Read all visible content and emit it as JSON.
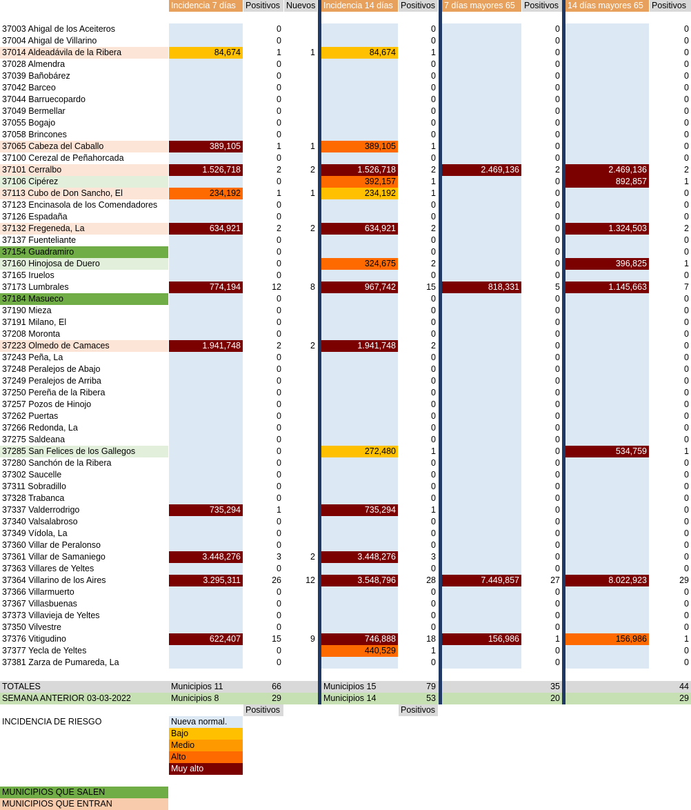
{
  "headers": {
    "inc7": "Incidencia 7 días",
    "pos7": "Positivos",
    "nuevos": "Nuevos",
    "inc14": "Incidencia 14 días",
    "pos14": "Positivos",
    "may7": "7 días mayores 65",
    "posm7": "Positivos",
    "may14": "14 días mayores 65",
    "posm14": "Positivos"
  },
  "rows": [
    {
      "name": "37003 Ahigal de los Aceiteros",
      "cls": "",
      "inc7": "",
      "c7": "light",
      "p7": "0",
      "n": "",
      "inc14": "",
      "c14": "light",
      "p14": "0",
      "m7": "",
      "cm7": "light",
      "pm7": "0",
      "m14": "",
      "cm14": "light",
      "pm14": "0"
    },
    {
      "name": "37004 Ahigal de Villarino",
      "cls": "",
      "inc7": "",
      "c7": "light",
      "p7": "0",
      "n": "",
      "inc14": "",
      "c14": "light",
      "p14": "0",
      "m7": "",
      "cm7": "light",
      "pm7": "0",
      "m14": "",
      "cm14": "light",
      "pm14": "0"
    },
    {
      "name": "37014 Aldeadávila de la Ribera",
      "cls": "entra-light",
      "inc7": "84,674",
      "c7": "bajo",
      "p7": "1",
      "n": "1",
      "inc14": "84,674",
      "c14": "bajo",
      "p14": "1",
      "m7": "",
      "cm7": "light",
      "pm7": "0",
      "m14": "",
      "cm14": "light",
      "pm14": "0"
    },
    {
      "name": "37028 Almendra",
      "cls": "",
      "inc7": "",
      "c7": "light",
      "p7": "0",
      "n": "",
      "inc14": "",
      "c14": "light",
      "p14": "0",
      "m7": "",
      "cm7": "light",
      "pm7": "0",
      "m14": "",
      "cm14": "light",
      "pm14": "0"
    },
    {
      "name": "37039 Bañobárez",
      "cls": "",
      "inc7": "",
      "c7": "light",
      "p7": "0",
      "n": "",
      "inc14": "",
      "c14": "light",
      "p14": "0",
      "m7": "",
      "cm7": "light",
      "pm7": "0",
      "m14": "",
      "cm14": "light",
      "pm14": "0"
    },
    {
      "name": "37042 Barceo",
      "cls": "",
      "inc7": "",
      "c7": "light",
      "p7": "0",
      "n": "",
      "inc14": "",
      "c14": "light",
      "p14": "0",
      "m7": "",
      "cm7": "light",
      "pm7": "0",
      "m14": "",
      "cm14": "light",
      "pm14": "0"
    },
    {
      "name": "37044 Barruecopardo",
      "cls": "",
      "inc7": "",
      "c7": "light",
      "p7": "0",
      "n": "",
      "inc14": "",
      "c14": "light",
      "p14": "0",
      "m7": "",
      "cm7": "light",
      "pm7": "0",
      "m14": "",
      "cm14": "light",
      "pm14": "0"
    },
    {
      "name": "37049 Bermellar",
      "cls": "",
      "inc7": "",
      "c7": "light",
      "p7": "0",
      "n": "",
      "inc14": "",
      "c14": "light",
      "p14": "0",
      "m7": "",
      "cm7": "light",
      "pm7": "0",
      "m14": "",
      "cm14": "light",
      "pm14": "0"
    },
    {
      "name": "37055 Bogajo",
      "cls": "",
      "inc7": "",
      "c7": "light",
      "p7": "0",
      "n": "",
      "inc14": "",
      "c14": "light",
      "p14": "0",
      "m7": "",
      "cm7": "light",
      "pm7": "0",
      "m14": "",
      "cm14": "light",
      "pm14": "0"
    },
    {
      "name": "37058 Brincones",
      "cls": "",
      "inc7": "",
      "c7": "light",
      "p7": "0",
      "n": "",
      "inc14": "",
      "c14": "light",
      "p14": "0",
      "m7": "",
      "cm7": "light",
      "pm7": "0",
      "m14": "",
      "cm14": "light",
      "pm14": "0"
    },
    {
      "name": "37065 Cabeza del Caballo",
      "cls": "entra-light",
      "inc7": "389,105",
      "c7": "muy",
      "p7": "1",
      "n": "1",
      "inc14": "389,105",
      "c14": "alto",
      "p14": "1",
      "m7": "",
      "cm7": "light",
      "pm7": "0",
      "m14": "",
      "cm14": "light",
      "pm14": "0"
    },
    {
      "name": "37100 Cerezal de Peñahorcada",
      "cls": "",
      "inc7": "",
      "c7": "light",
      "p7": "0",
      "n": "",
      "inc14": "",
      "c14": "light",
      "p14": "0",
      "m7": "",
      "cm7": "light",
      "pm7": "0",
      "m14": "",
      "cm14": "light",
      "pm14": "0"
    },
    {
      "name": "37101 Cerralbo",
      "cls": "entra-light",
      "inc7": "1.526,718",
      "c7": "muy",
      "p7": "2",
      "n": "2",
      "inc14": "1.526,718",
      "c14": "muy",
      "p14": "2",
      "m7": "2.469,136",
      "cm7": "muy",
      "pm7": "2",
      "m14": "2.469,136",
      "cm14": "muy",
      "pm14": "2"
    },
    {
      "name": "37106 Cipérez",
      "cls": "sale-light",
      "inc7": "",
      "c7": "light",
      "p7": "0",
      "n": "",
      "inc14": "392,157",
      "c14": "alto",
      "p14": "1",
      "m7": "",
      "cm7": "light",
      "pm7": "0",
      "m14": "892,857",
      "cm14": "muy",
      "pm14": "1"
    },
    {
      "name": "37113 Cubo de Don Sancho, El",
      "cls": "entra-light",
      "inc7": "234,192",
      "c7": "alto",
      "p7": "1",
      "n": "1",
      "inc14": "234,192",
      "c14": "bajo",
      "p14": "1",
      "m7": "",
      "cm7": "light",
      "pm7": "0",
      "m14": "",
      "cm14": "light",
      "pm14": "0"
    },
    {
      "name": "37123 Encinasola de los Comendadores",
      "cls": "",
      "inc7": "",
      "c7": "light",
      "p7": "0",
      "n": "",
      "inc14": "",
      "c14": "light",
      "p14": "0",
      "m7": "",
      "cm7": "light",
      "pm7": "0",
      "m14": "",
      "cm14": "light",
      "pm14": "0"
    },
    {
      "name": "37126 Espadaña",
      "cls": "",
      "inc7": "",
      "c7": "light",
      "p7": "0",
      "n": "",
      "inc14": "",
      "c14": "light",
      "p14": "0",
      "m7": "",
      "cm7": "light",
      "pm7": "0",
      "m14": "",
      "cm14": "light",
      "pm14": "0"
    },
    {
      "name": "37132 Fregeneda, La",
      "cls": "entra-light",
      "inc7": "634,921",
      "c7": "muy",
      "p7": "2",
      "n": "2",
      "inc14": "634,921",
      "c14": "muy",
      "p14": "2",
      "m7": "",
      "cm7": "light",
      "pm7": "0",
      "m14": "1.324,503",
      "cm14": "muy",
      "pm14": "2"
    },
    {
      "name": "37137 Fuenteliante",
      "cls": "",
      "inc7": "",
      "c7": "light",
      "p7": "0",
      "n": "",
      "inc14": "",
      "c14": "light",
      "p14": "0",
      "m7": "",
      "cm7": "light",
      "pm7": "0",
      "m14": "",
      "cm14": "light",
      "pm14": "0"
    },
    {
      "name": "37154 Guadramiro",
      "cls": "sale",
      "inc7": "",
      "c7": "light",
      "p7": "0",
      "n": "",
      "inc14": "",
      "c14": "light",
      "p14": "0",
      "m7": "",
      "cm7": "light",
      "pm7": "0",
      "m14": "",
      "cm14": "light",
      "pm14": "0"
    },
    {
      "name": "37160 Hinojosa de Duero",
      "cls": "sale-light",
      "inc7": "",
      "c7": "light",
      "p7": "0",
      "n": "",
      "inc14": "324,675",
      "c14": "alto",
      "p14": "2",
      "m7": "",
      "cm7": "light",
      "pm7": "0",
      "m14": "396,825",
      "cm14": "muy",
      "pm14": "1"
    },
    {
      "name": "37165 Iruelos",
      "cls": "",
      "inc7": "",
      "c7": "light",
      "p7": "0",
      "n": "",
      "inc14": "",
      "c14": "light",
      "p14": "0",
      "m7": "",
      "cm7": "light",
      "pm7": "0",
      "m14": "",
      "cm14": "light",
      "pm14": "0"
    },
    {
      "name": "37173 Lumbrales",
      "cls": "",
      "inc7": "774,194",
      "c7": "muy",
      "p7": "12",
      "n": "8",
      "inc14": "967,742",
      "c14": "muy",
      "p14": "15",
      "m7": "818,331",
      "cm7": "muy",
      "pm7": "5",
      "m14": "1.145,663",
      "cm14": "muy",
      "pm14": "7"
    },
    {
      "name": "37184 Masueco",
      "cls": "sale",
      "inc7": "",
      "c7": "light",
      "p7": "0",
      "n": "",
      "inc14": "",
      "c14": "light",
      "p14": "0",
      "m7": "",
      "cm7": "light",
      "pm7": "0",
      "m14": "",
      "cm14": "light",
      "pm14": "0"
    },
    {
      "name": "37190 Mieza",
      "cls": "",
      "inc7": "",
      "c7": "light",
      "p7": "0",
      "n": "",
      "inc14": "",
      "c14": "light",
      "p14": "0",
      "m7": "",
      "cm7": "light",
      "pm7": "0",
      "m14": "",
      "cm14": "light",
      "pm14": "0"
    },
    {
      "name": "37191 Milano, El",
      "cls": "",
      "inc7": "",
      "c7": "light",
      "p7": "0",
      "n": "",
      "inc14": "",
      "c14": "light",
      "p14": "0",
      "m7": "",
      "cm7": "light",
      "pm7": "0",
      "m14": "",
      "cm14": "light",
      "pm14": "0"
    },
    {
      "name": "37208 Moronta",
      "cls": "",
      "inc7": "",
      "c7": "light",
      "p7": "0",
      "n": "",
      "inc14": "",
      "c14": "light",
      "p14": "0",
      "m7": "",
      "cm7": "light",
      "pm7": "0",
      "m14": "",
      "cm14": "light",
      "pm14": "0"
    },
    {
      "name": "37223 Olmedo de Camaces",
      "cls": "entra-light",
      "inc7": "1.941,748",
      "c7": "muy",
      "p7": "2",
      "n": "2",
      "inc14": "1.941,748",
      "c14": "muy",
      "p14": "2",
      "m7": "",
      "cm7": "light",
      "pm7": "0",
      "m14": "",
      "cm14": "light",
      "pm14": "0"
    },
    {
      "name": "37243 Peña, La",
      "cls": "",
      "inc7": "",
      "c7": "light",
      "p7": "0",
      "n": "",
      "inc14": "",
      "c14": "light",
      "p14": "0",
      "m7": "",
      "cm7": "light",
      "pm7": "0",
      "m14": "",
      "cm14": "light",
      "pm14": "0"
    },
    {
      "name": "37248 Peralejos de Abajo",
      "cls": "",
      "inc7": "",
      "c7": "light",
      "p7": "0",
      "n": "",
      "inc14": "",
      "c14": "light",
      "p14": "0",
      "m7": "",
      "cm7": "light",
      "pm7": "0",
      "m14": "",
      "cm14": "light",
      "pm14": "0"
    },
    {
      "name": "37249 Peralejos de Arriba",
      "cls": "",
      "inc7": "",
      "c7": "light",
      "p7": "0",
      "n": "",
      "inc14": "",
      "c14": "light",
      "p14": "0",
      "m7": "",
      "cm7": "light",
      "pm7": "0",
      "m14": "",
      "cm14": "light",
      "pm14": "0"
    },
    {
      "name": "37250 Pereña de la Ribera",
      "cls": "",
      "inc7": "",
      "c7": "light",
      "p7": "0",
      "n": "",
      "inc14": "",
      "c14": "light",
      "p14": "0",
      "m7": "",
      "cm7": "light",
      "pm7": "0",
      "m14": "",
      "cm14": "light",
      "pm14": "0"
    },
    {
      "name": "37257 Pozos de Hinojo",
      "cls": "",
      "inc7": "",
      "c7": "light",
      "p7": "0",
      "n": "",
      "inc14": "",
      "c14": "light",
      "p14": "0",
      "m7": "",
      "cm7": "light",
      "pm7": "0",
      "m14": "",
      "cm14": "light",
      "pm14": "0"
    },
    {
      "name": "37262 Puertas",
      "cls": "",
      "inc7": "",
      "c7": "light",
      "p7": "0",
      "n": "",
      "inc14": "",
      "c14": "light",
      "p14": "0",
      "m7": "",
      "cm7": "light",
      "pm7": "0",
      "m14": "",
      "cm14": "light",
      "pm14": "0"
    },
    {
      "name": "37266 Redonda, La",
      "cls": "",
      "inc7": "",
      "c7": "light",
      "p7": "0",
      "n": "",
      "inc14": "",
      "c14": "light",
      "p14": "0",
      "m7": "",
      "cm7": "light",
      "pm7": "0",
      "m14": "",
      "cm14": "light",
      "pm14": "0"
    },
    {
      "name": "37275 Saldeana",
      "cls": "",
      "inc7": "",
      "c7": "light",
      "p7": "0",
      "n": "",
      "inc14": "",
      "c14": "light",
      "p14": "0",
      "m7": "",
      "cm7": "light",
      "pm7": "0",
      "m14": "",
      "cm14": "light",
      "pm14": "0"
    },
    {
      "name": "37285 San Felices de los Gallegos",
      "cls": "sale-light",
      "inc7": "",
      "c7": "light",
      "p7": "0",
      "n": "",
      "inc14": "272,480",
      "c14": "bajo",
      "p14": "1",
      "m7": "",
      "cm7": "light",
      "pm7": "0",
      "m14": "534,759",
      "cm14": "muy",
      "pm14": "1"
    },
    {
      "name": "37280 Sanchón de la Ribera",
      "cls": "",
      "inc7": "",
      "c7": "light",
      "p7": "0",
      "n": "",
      "inc14": "",
      "c14": "light",
      "p14": "0",
      "m7": "",
      "cm7": "light",
      "pm7": "0",
      "m14": "",
      "cm14": "light",
      "pm14": "0"
    },
    {
      "name": "37302 Saucelle",
      "cls": "",
      "inc7": "",
      "c7": "light",
      "p7": "0",
      "n": "",
      "inc14": "",
      "c14": "light",
      "p14": "0",
      "m7": "",
      "cm7": "light",
      "pm7": "0",
      "m14": "",
      "cm14": "light",
      "pm14": "0"
    },
    {
      "name": "37311 Sobradillo",
      "cls": "",
      "inc7": "",
      "c7": "light",
      "p7": "0",
      "n": "",
      "inc14": "",
      "c14": "light",
      "p14": "0",
      "m7": "",
      "cm7": "light",
      "pm7": "0",
      "m14": "",
      "cm14": "light",
      "pm14": "0"
    },
    {
      "name": "37328 Trabanca",
      "cls": "",
      "inc7": "",
      "c7": "light",
      "p7": "0",
      "n": "",
      "inc14": "",
      "c14": "light",
      "p14": "0",
      "m7": "",
      "cm7": "light",
      "pm7": "0",
      "m14": "",
      "cm14": "light",
      "pm14": "0"
    },
    {
      "name": "37337 Valderrodrigo",
      "cls": "",
      "inc7": "735,294",
      "c7": "muy",
      "p7": "1",
      "n": "",
      "inc14": "735,294",
      "c14": "muy",
      "p14": "1",
      "m7": "",
      "cm7": "light",
      "pm7": "0",
      "m14": "",
      "cm14": "light",
      "pm14": "0"
    },
    {
      "name": "37340 Valsalabroso",
      "cls": "",
      "inc7": "",
      "c7": "light",
      "p7": "0",
      "n": "",
      "inc14": "",
      "c14": "light",
      "p14": "0",
      "m7": "",
      "cm7": "light",
      "pm7": "0",
      "m14": "",
      "cm14": "light",
      "pm14": "0"
    },
    {
      "name": "37349 Vídola, La",
      "cls": "",
      "inc7": "",
      "c7": "light",
      "p7": "0",
      "n": "",
      "inc14": "",
      "c14": "light",
      "p14": "0",
      "m7": "",
      "cm7": "light",
      "pm7": "0",
      "m14": "",
      "cm14": "light",
      "pm14": "0"
    },
    {
      "name": "37360 Villar de Peralonso",
      "cls": "",
      "inc7": "",
      "c7": "light",
      "p7": "0",
      "n": "",
      "inc14": "",
      "c14": "light",
      "p14": "0",
      "m7": "",
      "cm7": "light",
      "pm7": "0",
      "m14": "",
      "cm14": "light",
      "pm14": "0"
    },
    {
      "name": "37361 Villar de Samaniego",
      "cls": "",
      "inc7": "3.448,276",
      "c7": "muy",
      "p7": "3",
      "n": "2",
      "inc14": "3.448,276",
      "c14": "muy",
      "p14": "3",
      "m7": "",
      "cm7": "light",
      "pm7": "0",
      "m14": "",
      "cm14": "light",
      "pm14": "0"
    },
    {
      "name": "37363 Villares de Yeltes",
      "cls": "",
      "inc7": "",
      "c7": "light",
      "p7": "0",
      "n": "",
      "inc14": "",
      "c14": "light",
      "p14": "0",
      "m7": "",
      "cm7": "light",
      "pm7": "0",
      "m14": "",
      "cm14": "light",
      "pm14": "0"
    },
    {
      "name": "37364 Villarino de los Aires",
      "cls": "",
      "inc7": "3.295,311",
      "c7": "muy",
      "p7": "26",
      "n": "12",
      "inc14": "3.548,796",
      "c14": "muy",
      "p14": "28",
      "m7": "7.449,857",
      "cm7": "muy",
      "pm7": "27",
      "m14": "8.022,923",
      "cm14": "muy",
      "pm14": "29"
    },
    {
      "name": "37366 Villarmuerto",
      "cls": "",
      "inc7": "",
      "c7": "light",
      "p7": "0",
      "n": "",
      "inc14": "",
      "c14": "light",
      "p14": "0",
      "m7": "",
      "cm7": "light",
      "pm7": "0",
      "m14": "",
      "cm14": "light",
      "pm14": "0"
    },
    {
      "name": "37367 Villasbuenas",
      "cls": "",
      "inc7": "",
      "c7": "light",
      "p7": "0",
      "n": "",
      "inc14": "",
      "c14": "light",
      "p14": "0",
      "m7": "",
      "cm7": "light",
      "pm7": "0",
      "m14": "",
      "cm14": "light",
      "pm14": "0"
    },
    {
      "name": "37373 Villavieja de Yeltes",
      "cls": "",
      "inc7": "",
      "c7": "light",
      "p7": "0",
      "n": "",
      "inc14": "",
      "c14": "light",
      "p14": "0",
      "m7": "",
      "cm7": "light",
      "pm7": "0",
      "m14": "",
      "cm14": "light",
      "pm14": "0"
    },
    {
      "name": "37350 Vilvestre",
      "cls": "",
      "inc7": "",
      "c7": "light",
      "p7": "0",
      "n": "",
      "inc14": "",
      "c14": "light",
      "p14": "0",
      "m7": "",
      "cm7": "light",
      "pm7": "0",
      "m14": "",
      "cm14": "light",
      "pm14": "0"
    },
    {
      "name": "37376 Vitigudino",
      "cls": "",
      "inc7": "622,407",
      "c7": "muy",
      "p7": "15",
      "n": "9",
      "inc14": "746,888",
      "c14": "muy",
      "p14": "18",
      "m7": "156,986",
      "cm7": "muy",
      "pm7": "1",
      "m14": "156,986",
      "cm14": "alto",
      "pm14": "1"
    },
    {
      "name": "37377 Yecla de Yeltes",
      "cls": "",
      "inc7": "",
      "c7": "light",
      "p7": "0",
      "n": "",
      "inc14": "440,529",
      "c14": "alto",
      "p14": "1",
      "m7": "",
      "cm7": "light",
      "pm7": "0",
      "m14": "",
      "cm14": "light",
      "pm14": "0"
    },
    {
      "name": "37381 Zarza de Pumareda, La",
      "cls": "",
      "inc7": "",
      "c7": "light",
      "p7": "0",
      "n": "",
      "inc14": "",
      "c14": "light",
      "p14": "0",
      "m7": "",
      "cm7": "light",
      "pm7": "0",
      "m14": "",
      "cm14": "light",
      "pm14": "0"
    }
  ],
  "totales": {
    "label": "TOTALES",
    "mun7": "Municipios 11",
    "pos7": "66",
    "mun14": "Municipios 15",
    "pos14": "79",
    "posm7": "35",
    "posm14": "44"
  },
  "anterior": {
    "label": "SEMANA ANTERIOR 03-03-2022",
    "mun7": "Municipios 8",
    "pos7": "29",
    "mun14": "Municipios 14",
    "pos14": "53",
    "posm7": "20",
    "posm14": "29"
  },
  "positivos_sub": {
    "p7": "Positivos",
    "p14": "Positivos"
  },
  "legend": {
    "title": "INCIDENCIA DE RIESGO",
    "items": [
      "Nueva normal.",
      "Bajo",
      "Medio",
      "Alto",
      "Muy alto"
    ],
    "colors": {
      "nueva": "#dce9f5",
      "bajo": "#ffc000",
      "medio": "#ff9900",
      "alto": "#ff6a00",
      "muy": "#7b0000"
    }
  },
  "municipios": {
    "salen": "MUNICIPIOS QUE SALEN",
    "entran": "MUNICIPIOS QUE ENTRAN"
  },
  "colors": {
    "header": "#e8a15c",
    "separator": "#1f3864",
    "sale": "#70ad47",
    "entra": "#f8cbad"
  }
}
